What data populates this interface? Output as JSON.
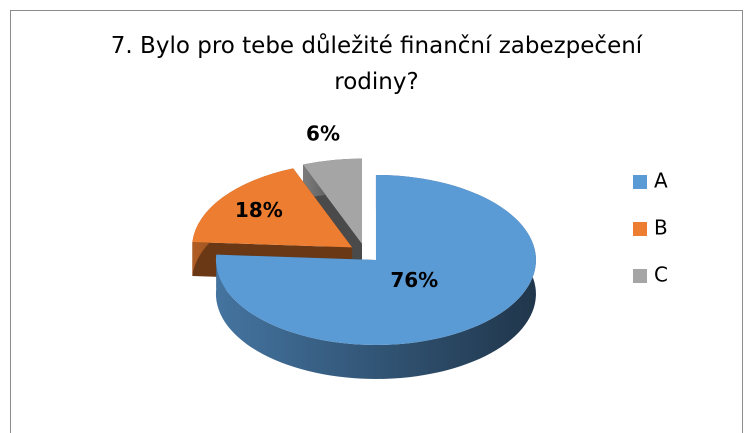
{
  "chart_data": {
    "type": "pie3d",
    "title": "7. Bylo pro tebe důležité finanční zabezpečení rodiny?",
    "categories": [
      "A",
      "B",
      "C"
    ],
    "values": [
      76,
      18,
      6
    ],
    "value_labels": [
      "76%",
      "18%",
      "6%"
    ],
    "colors": [
      "#5b9bd5",
      "#ed7d31",
      "#a5a5a5"
    ],
    "legend": "right"
  }
}
